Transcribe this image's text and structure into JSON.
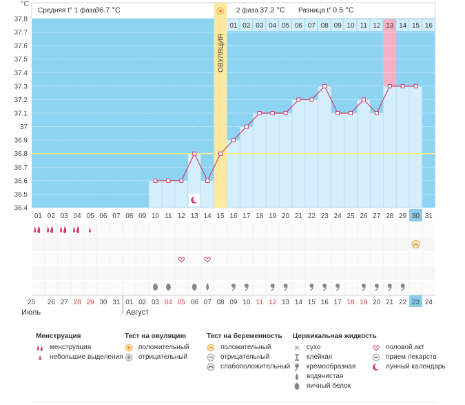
{
  "header": {
    "y_unit": "°C",
    "phase1_label": "Средняя t° 1 фаза",
    "phase1_value": "36.7 °C",
    "phase2_label": "2 фаза",
    "phase2_value": "37.2 °C",
    "diff_label": "Разница t°",
    "diff_value": "0.5 °C"
  },
  "chart_data": {
    "type": "line",
    "ylim": [
      36.4,
      37.8
    ],
    "y_ticks": [
      "36.4",
      "36.5",
      "36.6",
      "36.7",
      "36.8",
      "36.9",
      "37",
      "37.1",
      "37.2",
      "37.3",
      "37.4",
      "37.5",
      "37.6",
      "37.7",
      "37.8"
    ],
    "coverline": 36.8,
    "ovulation_label": "ОВУЛЯЦИЯ",
    "ovulation_day": 15,
    "cycle_days": [
      1,
      2,
      3,
      4,
      5,
      6,
      7,
      8,
      9,
      10,
      11,
      12,
      13,
      14,
      15,
      16,
      17,
      18,
      19,
      20,
      21,
      22,
      23,
      24,
      25,
      26,
      27,
      28,
      29,
      30,
      31
    ],
    "series": [
      {
        "values": [
          null,
          null,
          null,
          null,
          null,
          null,
          null,
          null,
          null,
          36.6,
          36.6,
          36.6,
          36.8,
          36.6,
          36.8,
          36.9,
          37.0,
          37.1,
          37.1,
          37.1,
          37.2,
          37.2,
          37.3,
          37.1,
          37.1,
          37.2,
          37.1,
          37.3,
          37.3,
          37.3,
          null
        ]
      }
    ],
    "luteal_days": [
      "01",
      "02",
      "03",
      "04",
      "05",
      "06",
      "07",
      "08",
      "09",
      "10",
      "11",
      "12",
      "13",
      "14",
      "15",
      "16"
    ],
    "luteal_highlight": "13",
    "today_cycle_day": "30",
    "dates": [
      {
        "t": "25",
        "red": false
      },
      {
        "t": "26",
        "red": false
      },
      {
        "t": "27",
        "red": false
      },
      {
        "t": "28",
        "red": true
      },
      {
        "t": "29",
        "red": true
      },
      {
        "t": "30",
        "red": false
      },
      {
        "t": "31",
        "red": false
      },
      {
        "t": "01",
        "red": false
      },
      {
        "t": "02",
        "red": false
      },
      {
        "t": "03",
        "red": false
      },
      {
        "t": "04",
        "red": true
      },
      {
        "t": "05",
        "red": true
      },
      {
        "t": "06",
        "red": false
      },
      {
        "t": "07",
        "red": false
      },
      {
        "t": "08",
        "red": false
      },
      {
        "t": "09",
        "red": false
      },
      {
        "t": "10",
        "red": false
      },
      {
        "t": "11",
        "red": true
      },
      {
        "t": "12",
        "red": true
      },
      {
        "t": "13",
        "red": false
      },
      {
        "t": "14",
        "red": false
      },
      {
        "t": "15",
        "red": false
      },
      {
        "t": "16",
        "red": false
      },
      {
        "t": "17",
        "red": false
      },
      {
        "t": "18",
        "red": true
      },
      {
        "t": "19",
        "red": true
      },
      {
        "t": "20",
        "red": false
      },
      {
        "t": "21",
        "red": false
      },
      {
        "t": "22",
        "red": false
      },
      {
        "t": "23",
        "red": false
      },
      {
        "t": "24",
        "red": false
      }
    ],
    "today_date": "23",
    "month1": "Июль",
    "month2": "Август",
    "menses": [
      "big",
      "big",
      "big",
      "big",
      "small",
      null,
      null,
      null,
      null,
      null,
      null,
      null,
      null,
      null,
      null,
      null,
      null,
      null,
      null,
      null,
      null,
      null,
      null,
      null,
      null,
      null,
      null,
      null,
      null,
      null,
      null
    ],
    "sex_days": [
      12,
      14
    ],
    "lunar_day": 13,
    "med_day": 30,
    "fluid": [
      null,
      null,
      null,
      null,
      null,
      null,
      null,
      null,
      null,
      "eggwhite",
      "eggwhite",
      null,
      "eggwhite",
      "watery",
      null,
      "creamy",
      "creamy",
      null,
      "creamy",
      "creamy",
      null,
      "creamy",
      "creamy",
      "creamy",
      null,
      "creamy",
      "creamy",
      "creamy",
      "creamy",
      null,
      null
    ]
  },
  "legend": {
    "menstr": {
      "title": "Менструация",
      "items": [
        "менструация",
        "небольшие выделения"
      ]
    },
    "ovtest": {
      "title": "Тест на овуляцию",
      "items": [
        "положительный",
        "отрицательный"
      ]
    },
    "pregtest": {
      "title": "Тест на беременность",
      "items": [
        "положительный",
        "отрицательный",
        "слабоположительный"
      ]
    },
    "fluid": {
      "title": "Цервикальная жидкость",
      "items": [
        "сухо",
        "клейкая",
        "кремообразная",
        "водянистая",
        "яичный белок"
      ]
    },
    "other": {
      "items": [
        "половой акт",
        "прием лекарств",
        "лунный календарь"
      ]
    }
  },
  "colors": {
    "plot_bg": "#8dd3f2",
    "bar": "#d4eefc",
    "bar_border": "#a9d4ee",
    "ovulation": "#fbeaa0",
    "line": "#d23c6e",
    "pink": "#f4b2c8",
    "today": "#8ccbea",
    "cover": "#f7ef8a"
  }
}
